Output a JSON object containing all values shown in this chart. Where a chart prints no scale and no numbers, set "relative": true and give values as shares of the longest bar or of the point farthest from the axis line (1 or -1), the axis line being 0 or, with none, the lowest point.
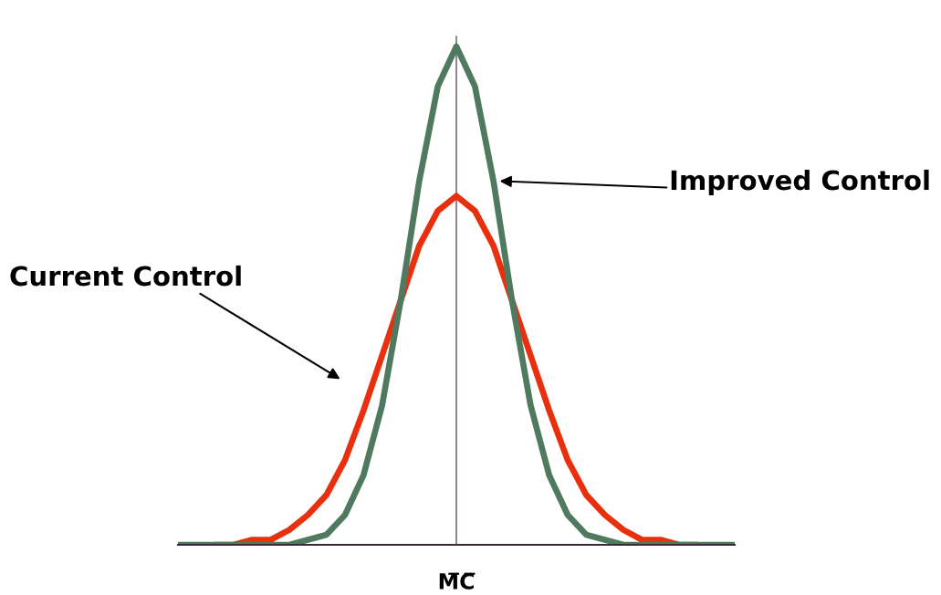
{
  "chart_data": {
    "type": "line",
    "relative": true,
    "legend": false,
    "marker": "none",
    "line_style": "solid",
    "categories": [
      null,
      null,
      null,
      null,
      null,
      null,
      null,
      null,
      null,
      null,
      null,
      null,
      null,
      null,
      null,
      null,
      null,
      null,
      null,
      null,
      null,
      null,
      null,
      null,
      null,
      null,
      null,
      null,
      null,
      null,
      null
    ],
    "series": [
      {
        "color": "#e8300f",
        "values": [
          null,
          null,
          0,
          0,
          0.01,
          0.01,
          0.03,
          0.06,
          0.1,
          0.17,
          0.27,
          0.38,
          0.49,
          0.6,
          0.67,
          0.7,
          0.67,
          0.6,
          0.49,
          0.38,
          0.27,
          0.17,
          0.1,
          0.06,
          0.03,
          0.01,
          0.01,
          0,
          0,
          null,
          null
        ]
      },
      {
        "color": "#4f7a5f",
        "values": [
          0,
          0,
          0,
          0,
          0,
          0,
          0,
          0.01,
          0.02,
          0.06,
          0.14,
          0.28,
          0.49,
          0.73,
          0.92,
          1.0,
          0.92,
          0.73,
          0.49,
          0.28,
          0.14,
          0.06,
          0.02,
          0.01,
          0,
          0,
          0,
          0,
          0,
          0,
          0
        ]
      }
    ],
    "annotations": [
      "Current Control",
      "Improved Control",
      "M̅C̅"
    ]
  }
}
